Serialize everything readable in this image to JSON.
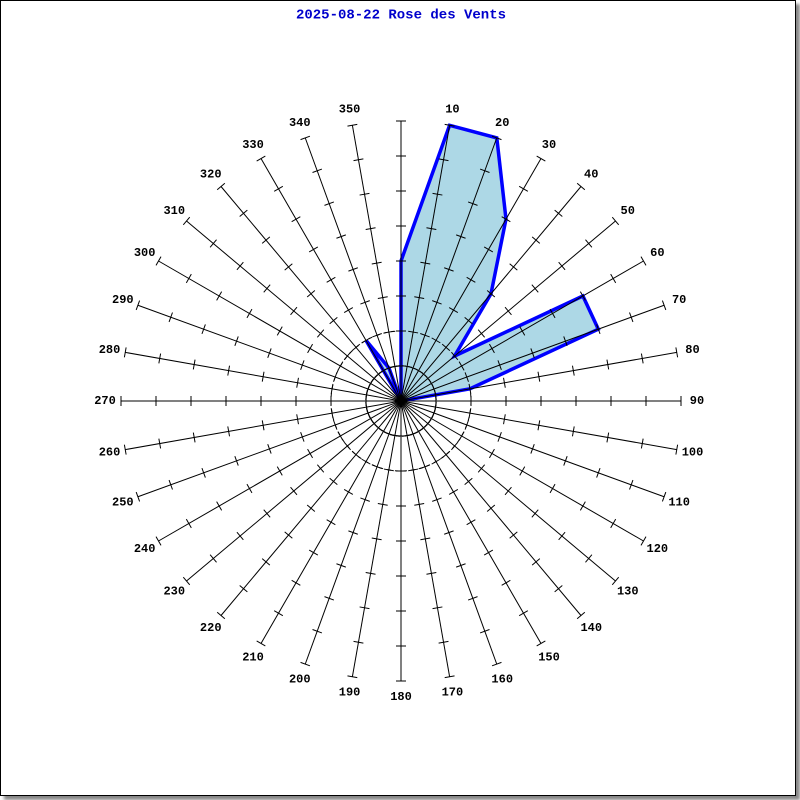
{
  "chart_data": {
    "type": "radar",
    "title": "2025-08-22 Rose des Vents",
    "categories": [
      null,
      "10",
      "20",
      "30",
      "40",
      "50",
      "60",
      "70",
      "80",
      "90",
      "100",
      "110",
      "120",
      "130",
      "140",
      "150",
      "160",
      "170",
      "180",
      "190",
      "200",
      "210",
      "220",
      "230",
      "240",
      "250",
      "260",
      "270",
      "280",
      "290",
      "300",
      "310",
      "320",
      "330",
      "340",
      "350"
    ],
    "values": [
      4,
      8,
      8,
      6,
      4,
      2,
      6,
      6,
      2,
      0,
      0,
      0,
      0,
      0,
      0,
      0,
      0,
      0,
      0,
      0,
      0,
      0,
      0,
      0,
      0,
      0,
      0,
      0,
      0,
      0,
      0,
      0,
      0,
      2,
      1,
      0
    ],
    "color": "#add8e6",
    "line_color": "#0000ff",
    "rlim": [
      0,
      8
    ],
    "rticks": [
      1,
      2,
      3,
      4,
      5,
      6,
      7,
      8
    ]
  }
}
